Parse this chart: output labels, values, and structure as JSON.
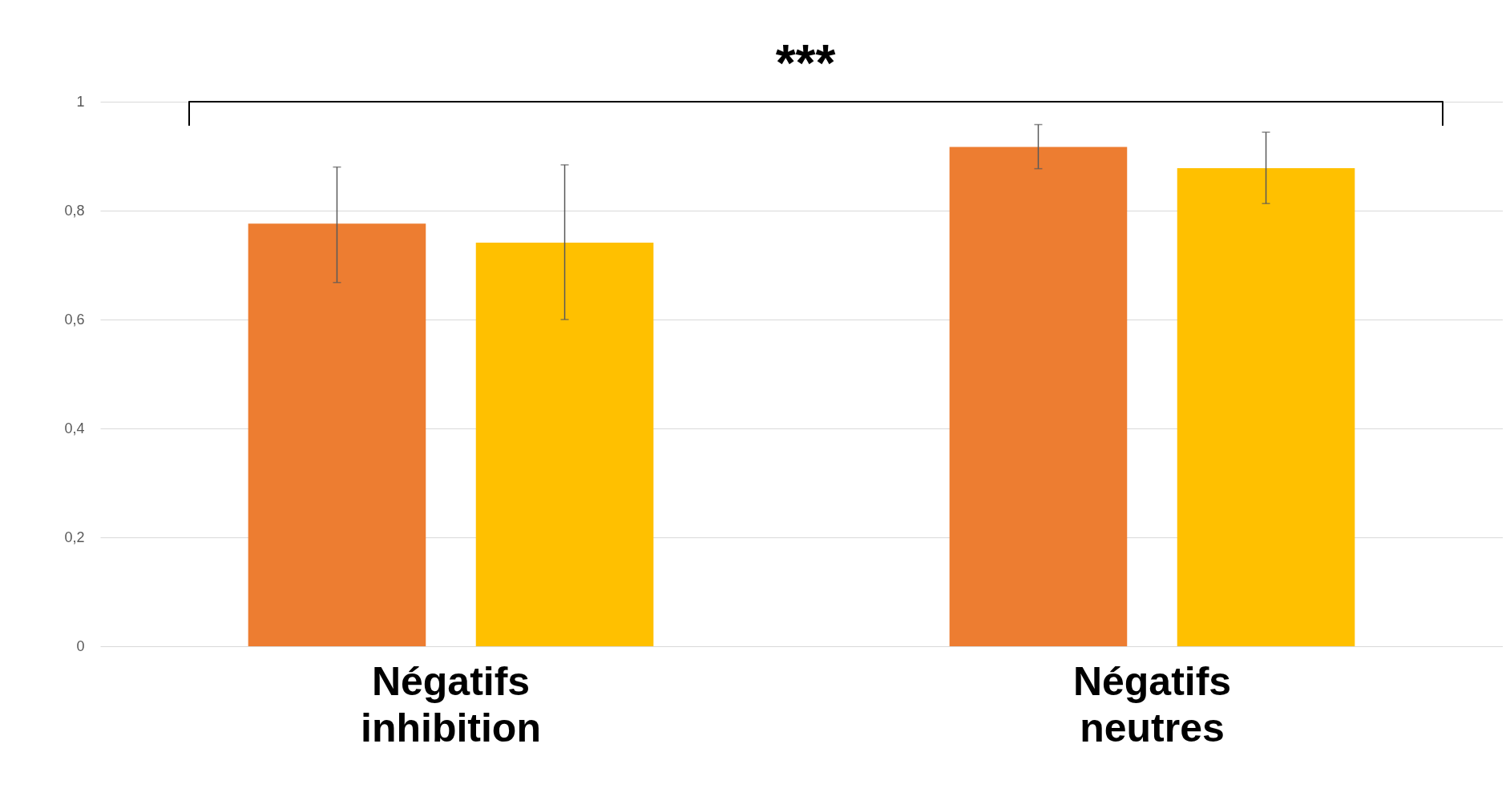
{
  "chart_data": {
    "type": "bar",
    "categories": [
      "Négatifs inhibition",
      "Négatifs neutres"
    ],
    "series": [
      {
        "color": "#ed7d31",
        "values": [
          0.776,
          0.917
        ],
        "errors": [
          [
            0.668,
            0.88
          ],
          [
            0.877,
            0.958
          ]
        ]
      },
      {
        "color": "#ffc000",
        "values": [
          0.741,
          0.878
        ],
        "errors": [
          [
            0.6,
            0.884
          ],
          [
            0.813,
            0.944
          ]
        ]
      }
    ],
    "ylim": [
      0,
      1
    ],
    "yticks": [
      0,
      {
        "value": 0.2,
        "label": "0,2"
      },
      {
        "value": 0.4,
        "label": "0,4"
      },
      {
        "value": 0.6,
        "label": "0,6"
      },
      {
        "value": 0.8,
        "label": "0,8"
      },
      1
    ],
    "grid": "y",
    "legend": false,
    "annotations": [
      "***"
    ]
  }
}
